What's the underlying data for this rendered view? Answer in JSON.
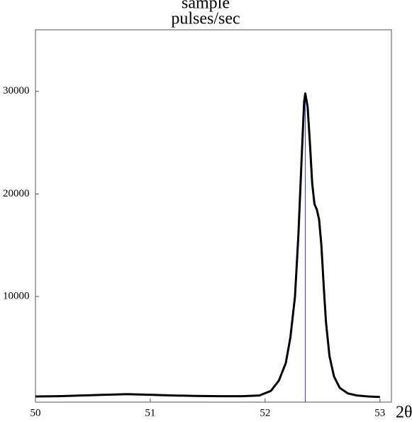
{
  "chart_data": {
    "type": "line",
    "title": "sample",
    "y_label": "pulses/sec",
    "x_label": "2θ°",
    "x": [
      50,
      50.2,
      50.4,
      50.6,
      50.8,
      51.0,
      51.2,
      51.4,
      51.6,
      51.8,
      51.95,
      52.05,
      52.12,
      52.18,
      52.22,
      52.26,
      52.29,
      52.32,
      52.34,
      52.35,
      52.37,
      52.39,
      52.41,
      52.43,
      52.45,
      52.47,
      52.49,
      52.51,
      52.53,
      52.56,
      52.6,
      52.65,
      52.72,
      52.8,
      52.9,
      53.0
    ],
    "series": [
      {
        "color": "#000000",
        "values": [
          250,
          280,
          350,
          420,
          480,
          420,
          350,
          300,
          280,
          280,
          350,
          800,
          1800,
          3500,
          6000,
          10000,
          16000,
          24000,
          29000,
          29800,
          28500,
          25000,
          21000,
          19000,
          18500,
          17500,
          15000,
          11000,
          7500,
          4200,
          2200,
          1100,
          550,
          350,
          250,
          200
        ]
      }
    ],
    "peak_marker": 52.35,
    "peak_marker_color": "#3a3ad6",
    "xlim": [
      50,
      53.1
    ],
    "xticks": [
      50,
      51,
      52,
      53
    ],
    "ylim": [
      -300,
      36000
    ],
    "yticks": [
      10000,
      20000,
      30000
    ]
  }
}
